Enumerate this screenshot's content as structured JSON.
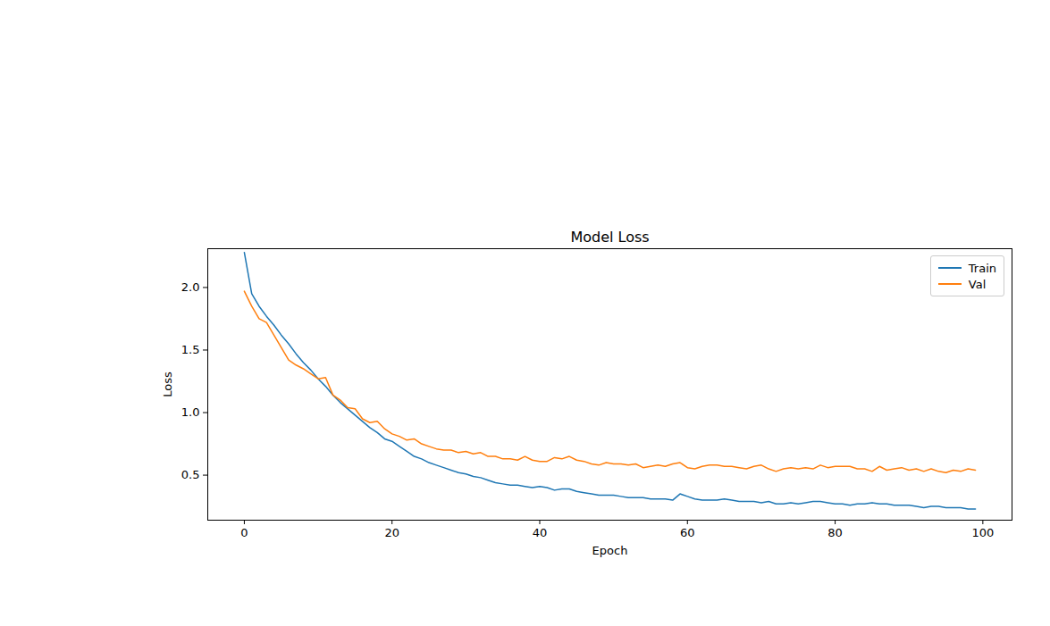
{
  "chart_data": {
    "type": "line",
    "title": "Model Loss",
    "x_label": "Epoch",
    "y_label": "Loss",
    "x": [
      0,
      1,
      2,
      3,
      4,
      5,
      6,
      7,
      8,
      9,
      10,
      11,
      12,
      13,
      14,
      15,
      16,
      17,
      18,
      19,
      20,
      21,
      22,
      23,
      24,
      25,
      26,
      27,
      28,
      29,
      30,
      31,
      32,
      33,
      34,
      35,
      36,
      37,
      38,
      39,
      40,
      41,
      42,
      43,
      44,
      45,
      46,
      47,
      48,
      49,
      50,
      51,
      52,
      53,
      54,
      55,
      56,
      57,
      58,
      59,
      60,
      61,
      62,
      63,
      64,
      65,
      66,
      67,
      68,
      69,
      70,
      71,
      72,
      73,
      74,
      75,
      76,
      77,
      78,
      79,
      80,
      81,
      82,
      83,
      84,
      85,
      86,
      87,
      88,
      89,
      90,
      91,
      92,
      93,
      94,
      95,
      96,
      97,
      98,
      99
    ],
    "series": [
      {
        "name": "Train",
        "color": "#1f77b4",
        "values": [
          2.28,
          1.95,
          1.85,
          1.77,
          1.7,
          1.62,
          1.55,
          1.47,
          1.4,
          1.34,
          1.27,
          1.21,
          1.14,
          1.08,
          1.03,
          0.98,
          0.93,
          0.88,
          0.84,
          0.79,
          0.77,
          0.73,
          0.69,
          0.65,
          0.63,
          0.6,
          0.58,
          0.56,
          0.54,
          0.52,
          0.51,
          0.49,
          0.48,
          0.46,
          0.44,
          0.43,
          0.42,
          0.42,
          0.41,
          0.4,
          0.41,
          0.4,
          0.38,
          0.39,
          0.39,
          0.37,
          0.36,
          0.35,
          0.34,
          0.34,
          0.34,
          0.33,
          0.32,
          0.32,
          0.32,
          0.31,
          0.31,
          0.31,
          0.3,
          0.35,
          0.33,
          0.31,
          0.3,
          0.3,
          0.3,
          0.31,
          0.3,
          0.29,
          0.29,
          0.29,
          0.28,
          0.29,
          0.27,
          0.27,
          0.28,
          0.27,
          0.28,
          0.29,
          0.29,
          0.28,
          0.27,
          0.27,
          0.26,
          0.27,
          0.27,
          0.28,
          0.27,
          0.27,
          0.26,
          0.26,
          0.26,
          0.25,
          0.24,
          0.25,
          0.25,
          0.24,
          0.24,
          0.24,
          0.23,
          0.23
        ]
      },
      {
        "name": "Val",
        "color": "#ff7f0e",
        "values": [
          1.97,
          1.85,
          1.75,
          1.72,
          1.62,
          1.52,
          1.42,
          1.38,
          1.35,
          1.31,
          1.27,
          1.28,
          1.14,
          1.1,
          1.04,
          1.03,
          0.95,
          0.92,
          0.93,
          0.87,
          0.83,
          0.81,
          0.78,
          0.79,
          0.75,
          0.73,
          0.71,
          0.7,
          0.7,
          0.68,
          0.69,
          0.67,
          0.68,
          0.65,
          0.65,
          0.63,
          0.63,
          0.62,
          0.65,
          0.62,
          0.61,
          0.61,
          0.64,
          0.63,
          0.65,
          0.62,
          0.61,
          0.59,
          0.58,
          0.6,
          0.59,
          0.59,
          0.58,
          0.59,
          0.56,
          0.57,
          0.58,
          0.57,
          0.59,
          0.6,
          0.56,
          0.55,
          0.57,
          0.58,
          0.58,
          0.57,
          0.57,
          0.56,
          0.55,
          0.57,
          0.58,
          0.55,
          0.53,
          0.55,
          0.56,
          0.55,
          0.56,
          0.55,
          0.58,
          0.56,
          0.57,
          0.57,
          0.57,
          0.55,
          0.55,
          0.53,
          0.57,
          0.54,
          0.55,
          0.56,
          0.54,
          0.55,
          0.53,
          0.55,
          0.53,
          0.52,
          0.54,
          0.53,
          0.55,
          0.54
        ]
      }
    ],
    "xlim": [
      -4.95,
      103.95
    ],
    "xticks": [
      0,
      20,
      40,
      60,
      80,
      100
    ],
    "ylim": [
      0.14,
      2.31
    ],
    "yticks": [
      {
        "value": 0.5,
        "label": "0.5"
      },
      {
        "value": 1,
        "label": "1.0"
      },
      {
        "value": 1.5,
        "label": "1.5"
      },
      {
        "value": 2,
        "label": "2.0"
      }
    ],
    "legend": "upper right"
  }
}
